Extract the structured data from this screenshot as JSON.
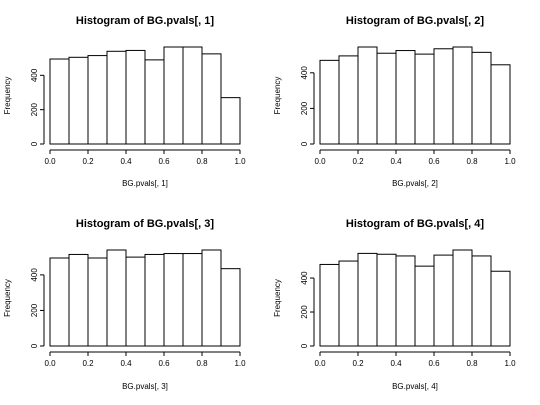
{
  "chart_data": [
    {
      "type": "bar",
      "title": "Histogram of BG.pvals[, 1]",
      "xlabel": "BG.pvals[, 1]",
      "ylabel": "Frequency",
      "bin_edges": [
        0.0,
        0.1,
        0.2,
        0.3,
        0.4,
        0.5,
        0.6,
        0.7,
        0.8,
        0.9,
        1.0
      ],
      "values": [
        495,
        505,
        515,
        540,
        545,
        490,
        565,
        565,
        525,
        270
      ],
      "x_ticks": [
        "0.0",
        "0.2",
        "0.4",
        "0.6",
        "0.8",
        "1.0"
      ],
      "y_ticks": [
        "0",
        "200",
        "400"
      ],
      "xlim": [
        0,
        1
      ],
      "ylim": [
        0,
        565
      ]
    },
    {
      "type": "bar",
      "title": "Histogram of BG.pvals[, 2]",
      "xlabel": "BG.pvals[, 2]",
      "ylabel": "Frequency",
      "bin_edges": [
        0.0,
        0.1,
        0.2,
        0.3,
        0.4,
        0.5,
        0.6,
        0.7,
        0.8,
        0.9,
        1.0
      ],
      "values": [
        470,
        495,
        545,
        510,
        525,
        505,
        535,
        545,
        515,
        445
      ],
      "x_ticks": [
        "0.0",
        "0.2",
        "0.4",
        "0.6",
        "0.8",
        "1.0"
      ],
      "y_ticks": [
        "0",
        "200",
        "400"
      ],
      "xlim": [
        0,
        1
      ],
      "ylim": [
        0,
        545
      ]
    },
    {
      "type": "bar",
      "title": "Histogram of BG.pvals[, 3]",
      "xlabel": "BG.pvals[, 3]",
      "ylabel": "Frequency",
      "bin_edges": [
        0.0,
        0.1,
        0.2,
        0.3,
        0.4,
        0.5,
        0.6,
        0.7,
        0.8,
        0.9,
        1.0
      ],
      "values": [
        495,
        515,
        495,
        540,
        500,
        515,
        520,
        520,
        540,
        435
      ],
      "x_ticks": [
        "0.0",
        "0.2",
        "0.4",
        "0.6",
        "0.8",
        "1.0"
      ],
      "y_ticks": [
        "0",
        "200",
        "400"
      ],
      "xlim": [
        0,
        1
      ],
      "ylim": [
        0,
        540
      ]
    },
    {
      "type": "bar",
      "title": "Histogram of BG.pvals[, 4]",
      "xlabel": "BG.pvals[, 4]",
      "ylabel": "Frequency",
      "bin_edges": [
        0.0,
        0.1,
        0.2,
        0.3,
        0.4,
        0.5,
        0.6,
        0.7,
        0.8,
        0.9,
        1.0
      ],
      "values": [
        480,
        500,
        545,
        540,
        530,
        470,
        535,
        565,
        530,
        440
      ],
      "x_ticks": [
        "0.0",
        "0.2",
        "0.4",
        "0.6",
        "0.8",
        "1.0"
      ],
      "y_ticks": [
        "0",
        "200",
        "400"
      ],
      "xlim": [
        0,
        1
      ],
      "ylim": [
        0,
        565
      ]
    }
  ]
}
